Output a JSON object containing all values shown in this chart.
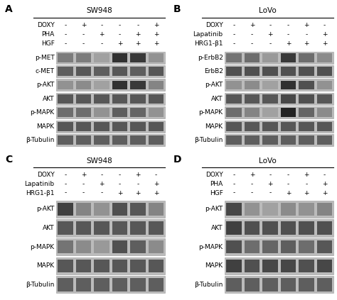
{
  "panels": {
    "A": {
      "title": "SW948",
      "label": "A",
      "treatment_labels": [
        "DOXY",
        "PHA",
        "HGF"
      ],
      "treatments": [
        [
          "-",
          "-",
          "-"
        ],
        [
          "+",
          "-",
          "-"
        ],
        [
          "-",
          "+",
          "-"
        ],
        [
          "-",
          "-",
          "+"
        ],
        [
          "-",
          "+",
          "+"
        ],
        [
          "+",
          "+",
          "+"
        ]
      ],
      "blots": [
        "p-MET",
        "c-MET",
        "p-AKT",
        "AKT",
        "p-MAPK",
        "MAPK",
        "β-Tubulin"
      ]
    },
    "B": {
      "title": "LoVo",
      "label": "B",
      "treatment_labels": [
        "DOXY",
        "Lapatinib",
        "HRG1-β1"
      ],
      "treatments": [
        [
          "-",
          "-",
          "-"
        ],
        [
          "+",
          "-",
          "-"
        ],
        [
          "-",
          "+",
          "-"
        ],
        [
          "-",
          "-",
          "+"
        ],
        [
          "+",
          "-",
          "+"
        ],
        [
          "-",
          "+",
          "+"
        ]
      ],
      "blots": [
        "p-ErbB2",
        "ErbB2",
        "p-AKT",
        "AKT",
        "p-MAPK",
        "MAPK",
        "β-Tubulin"
      ]
    },
    "C": {
      "title": "SW948",
      "label": "C",
      "treatment_labels": [
        "DOXY",
        "Lapatinib",
        "HRG1-β1"
      ],
      "treatments": [
        [
          "-",
          "-",
          "-"
        ],
        [
          "+",
          "-",
          "-"
        ],
        [
          "-",
          "+",
          "-"
        ],
        [
          "-",
          "-",
          "+"
        ],
        [
          "+",
          "-",
          "+"
        ],
        [
          "-",
          "+",
          "+"
        ]
      ],
      "blots": [
        "p-AKT",
        "AKT",
        "p-MAPK",
        "MAPK",
        "β-Tubulin"
      ]
    },
    "D": {
      "title": "LoVo",
      "label": "D",
      "treatment_labels": [
        "DOXY",
        "PHA",
        "HGF"
      ],
      "treatments": [
        [
          "-",
          "-",
          "-"
        ],
        [
          "+",
          "-",
          "-"
        ],
        [
          "-",
          "+",
          "-"
        ],
        [
          "-",
          "-",
          "+"
        ],
        [
          "+",
          "-",
          "+"
        ],
        [
          "-",
          "+",
          "+"
        ]
      ],
      "blots": [
        "p-AKT",
        "AKT",
        "p-MAPK",
        "MAPK",
        "β-Tubulin"
      ]
    }
  },
  "bg_color": "#ffffff",
  "blot_bg": "#bbbbbb",
  "label_fontsize": 6.5,
  "title_fontsize": 7.5,
  "panel_label_fontsize": 10,
  "band_patterns": {
    "A": {
      "p-MET": [
        0.4,
        0.4,
        0.15,
        0.9,
        0.85,
        0.25
      ],
      "c-MET": [
        0.6,
        0.65,
        0.6,
        0.65,
        0.6,
        0.65
      ],
      "p-AKT": [
        0.25,
        0.3,
        0.15,
        0.9,
        0.85,
        0.35
      ],
      "AKT": [
        0.65,
        0.65,
        0.65,
        0.65,
        0.65,
        0.65
      ],
      "p-MAPK": [
        0.5,
        0.5,
        0.25,
        0.6,
        0.55,
        0.25
      ],
      "MAPK": [
        0.65,
        0.65,
        0.65,
        0.65,
        0.65,
        0.65
      ],
      "β-Tubulin": [
        0.6,
        0.6,
        0.6,
        0.6,
        0.6,
        0.6
      ]
    },
    "B": {
      "p-ErbB2": [
        0.45,
        0.5,
        0.2,
        0.85,
        0.5,
        0.3
      ],
      "ErbB2": [
        0.7,
        0.7,
        0.7,
        0.7,
        0.7,
        0.7
      ],
      "p-AKT": [
        0.25,
        0.3,
        0.15,
        0.9,
        0.7,
        0.25
      ],
      "AKT": [
        0.65,
        0.65,
        0.65,
        0.75,
        0.7,
        0.65
      ],
      "p-MAPK": [
        0.5,
        0.35,
        0.15,
        1.0,
        0.55,
        0.3
      ],
      "MAPK": [
        0.65,
        0.65,
        0.65,
        0.65,
        0.65,
        0.65
      ],
      "β-Tubulin": [
        0.6,
        0.6,
        0.6,
        0.6,
        0.6,
        0.6
      ]
    },
    "C": {
      "p-AKT": [
        0.8,
        0.35,
        0.25,
        0.7,
        0.65,
        0.35
      ],
      "AKT": [
        0.65,
        0.65,
        0.65,
        0.65,
        0.65,
        0.65
      ],
      "p-MAPK": [
        0.45,
        0.3,
        0.2,
        0.7,
        0.6,
        0.3
      ],
      "MAPK": [
        0.65,
        0.65,
        0.65,
        0.65,
        0.65,
        0.65
      ],
      "β-Tubulin": [
        0.6,
        0.6,
        0.6,
        0.6,
        0.6,
        0.6
      ]
    },
    "D": {
      "p-AKT": [
        0.75,
        0.25,
        0.15,
        0.3,
        0.25,
        0.35
      ],
      "AKT": [
        0.8,
        0.7,
        0.7,
        0.7,
        0.7,
        0.7
      ],
      "p-MAPK": [
        0.7,
        0.5,
        0.55,
        0.6,
        0.5,
        0.65
      ],
      "MAPK": [
        0.8,
        0.7,
        0.75,
        0.75,
        0.7,
        0.75
      ],
      "β-Tubulin": [
        0.6,
        0.6,
        0.6,
        0.6,
        0.6,
        0.6
      ]
    }
  }
}
